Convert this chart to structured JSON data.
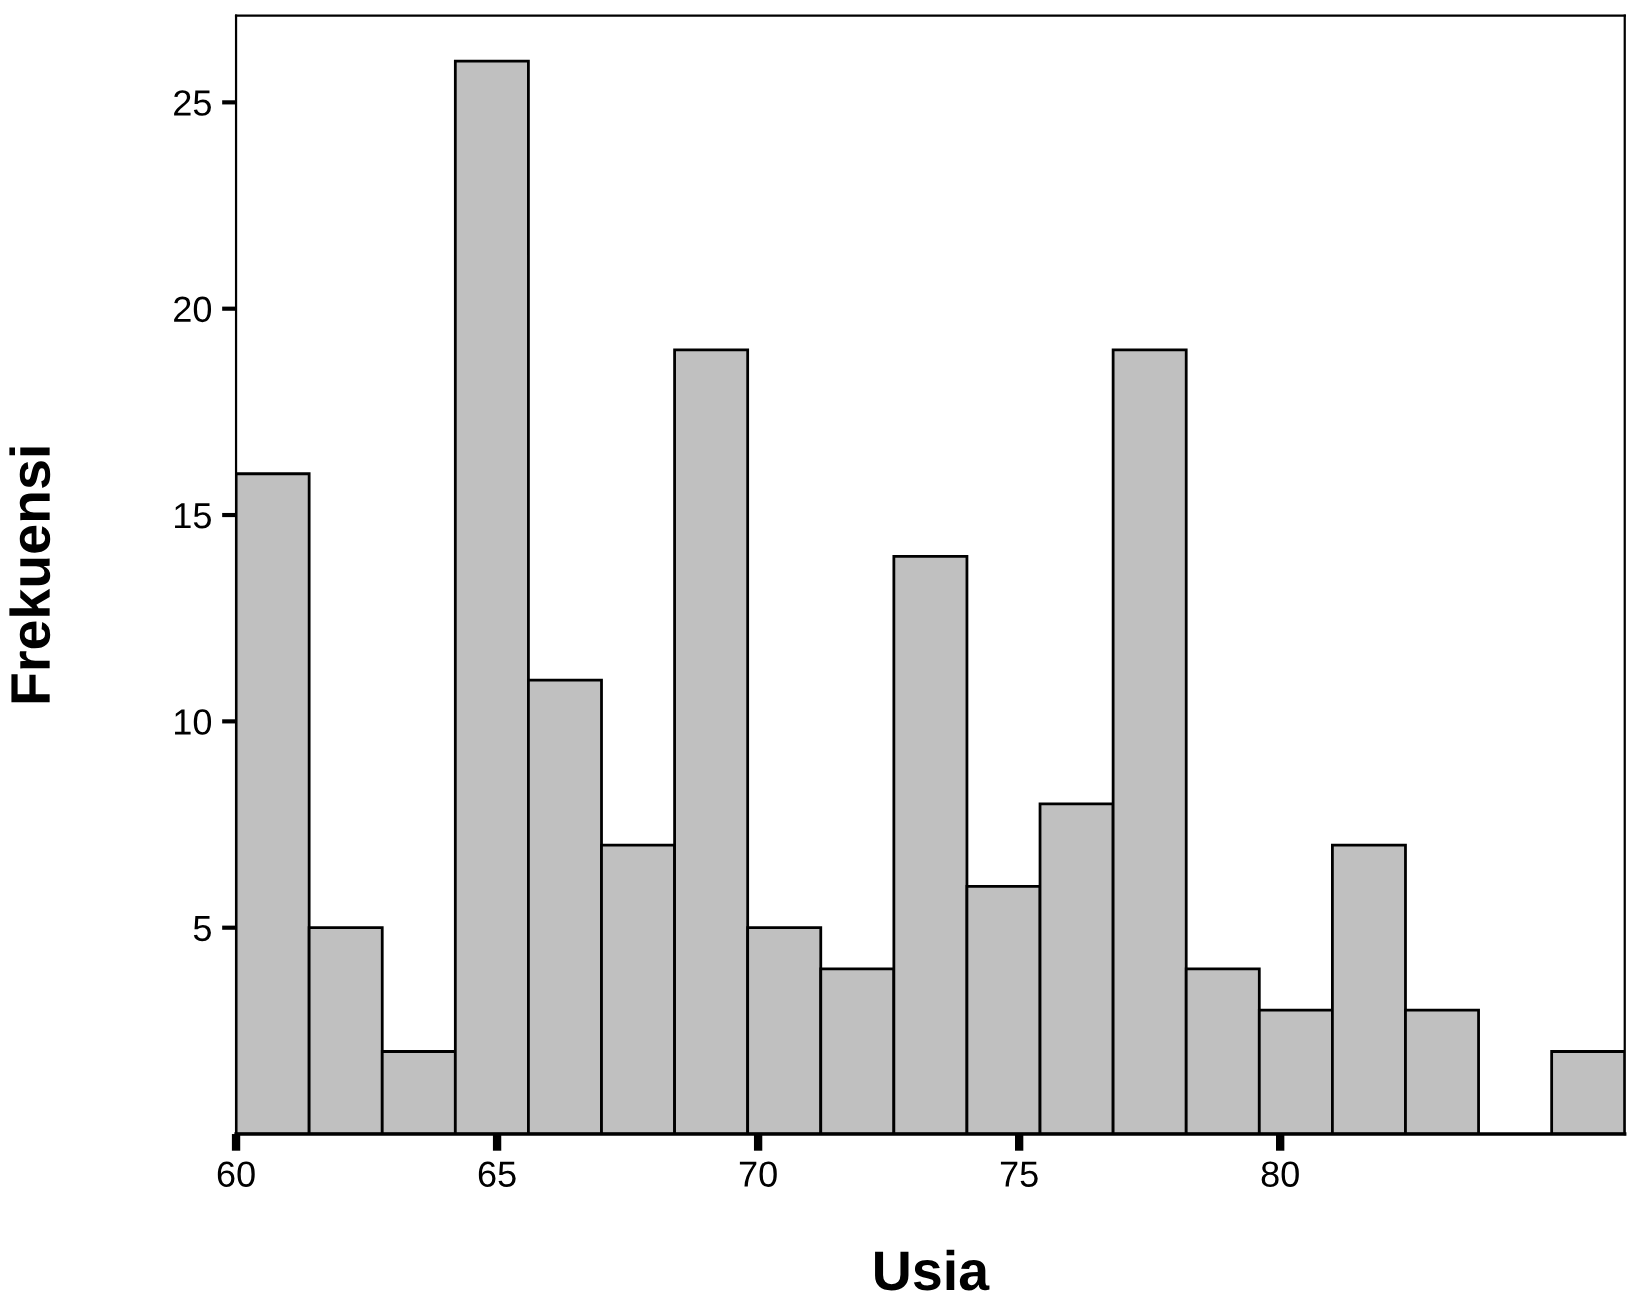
{
  "chart_data": {
    "type": "histogram",
    "xlabel": "Usia",
    "ylabel": "Frekuensi",
    "bins": [
      60,
      61.4,
      62.8,
      64.2,
      65.6,
      67,
      68.4,
      69.8,
      71.2,
      72.6,
      74,
      75.4,
      76.8,
      78.2,
      79.6,
      81,
      82.4,
      83.8,
      85.2,
      86.6
    ],
    "values": [
      16,
      5,
      2,
      26,
      11,
      7,
      19,
      5,
      4,
      14,
      6,
      8,
      19,
      4,
      3,
      7,
      3,
      0,
      2
    ],
    "color": "#c0c0c0",
    "xlim": [
      60,
      86.6
    ],
    "xticks": [
      60,
      65,
      70,
      75,
      80
    ],
    "ylim": [
      0,
      27.1
    ],
    "yticks": [
      5,
      10,
      15,
      20,
      25
    ],
    "grid": false,
    "legend": false
  }
}
